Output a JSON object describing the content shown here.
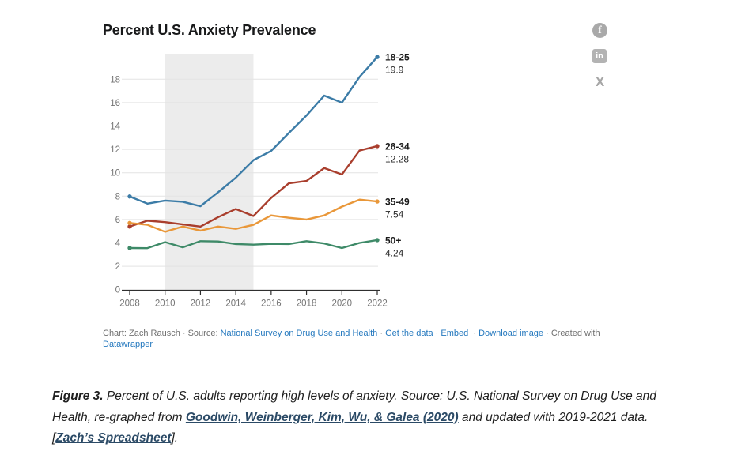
{
  "title": "Percent U.S. Anxiety Prevalence",
  "social": {
    "facebook_glyph": "f",
    "linkedin_glyph": "in",
    "x_glyph": "X"
  },
  "chart_data": {
    "type": "line",
    "title": "Percent U.S. Anxiety Prevalence",
    "x": [
      2008,
      2009,
      2010,
      2011,
      2012,
      2013,
      2014,
      2015,
      2016,
      2017,
      2018,
      2019,
      2020,
      2021,
      2022
    ],
    "x_tick_labels": [
      "2008",
      "2010",
      "2012",
      "2014",
      "2016",
      "2018",
      "2020",
      "2022"
    ],
    "x_tick_years": [
      2008,
      2010,
      2012,
      2014,
      2016,
      2018,
      2020,
      2022
    ],
    "y_ticks": [
      0,
      2,
      4,
      6,
      8,
      10,
      12,
      14,
      16,
      18
    ],
    "ylim": [
      0,
      20.3
    ],
    "grid": "horizontal",
    "legend_position": "end-of-line-labels",
    "shaded_region": {
      "x0": 2010,
      "x1": 2015,
      "color": "#ececec"
    },
    "series": [
      {
        "name": "18-25",
        "end_label": "18-25",
        "end_value_label": "19.9",
        "color": "#3c7ca7",
        "values": [
          7.97,
          7.36,
          7.62,
          7.52,
          7.14,
          8.33,
          9.58,
          11.08,
          11.87,
          13.4,
          14.9,
          16.6,
          16.0,
          18.2,
          19.9
        ]
      },
      {
        "name": "26-34",
        "end_label": "26-34",
        "end_value_label": "12.28",
        "color": "#a93e2d",
        "values": [
          5.4,
          5.9,
          5.78,
          5.58,
          5.4,
          6.2,
          6.9,
          6.3,
          7.85,
          9.1,
          9.3,
          10.4,
          9.85,
          11.9,
          12.28
        ]
      },
      {
        "name": "35-49",
        "end_label": "35-49",
        "end_value_label": "7.54",
        "color": "#e99739",
        "values": [
          5.7,
          5.55,
          4.95,
          5.4,
          5.05,
          5.4,
          5.2,
          5.55,
          6.35,
          6.15,
          6.0,
          6.35,
          7.1,
          7.7,
          7.54
        ]
      },
      {
        "name": "50+",
        "end_label": "50+",
        "end_value_label": "4.24",
        "color": "#3e8a68",
        "values": [
          3.56,
          3.55,
          4.07,
          3.62,
          4.15,
          4.12,
          3.9,
          3.85,
          3.92,
          3.9,
          4.15,
          3.95,
          3.56,
          4.0,
          4.24
        ]
      }
    ],
    "axis_color": "#2f2f2f",
    "gridline_color": "#e3e3e3",
    "tick_label_color": "#757575"
  },
  "footer": {
    "f1": "Chart: Zach Rausch · Source: ",
    "f2": "National Survey on Drug Use and Health",
    "f3": " · ",
    "f4": "Get the data",
    "f5": " · ",
    "f6": "Embed",
    "f7": "  · ",
    "f8": "Download image",
    "f9": " · Created with ",
    "f10": "Datawrapper"
  },
  "caption": {
    "p1": "Figure 3.",
    "p2": " Percent of U.S. adults reporting high levels of anxiety. Source: U.S. National Survey on Drug Use and Health, re-graphed from ",
    "p3": "Goodwin, Weinberger, Kim, Wu, & Galea (2020)",
    "p4": " and updated with 2019-2021 data. [",
    "p5": "Zach’s Spreadsheet",
    "p6": "]."
  }
}
